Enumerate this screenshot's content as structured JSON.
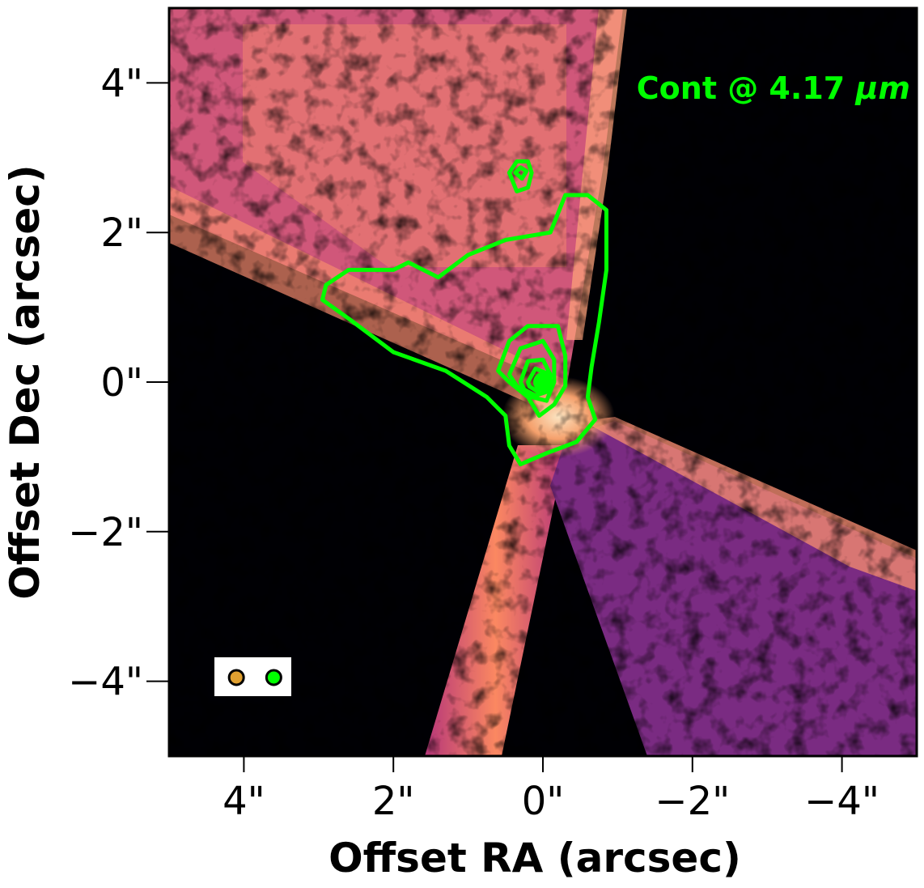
{
  "chart_data": {
    "type": "heatmap",
    "title": "",
    "xlabel": "Offset RA (arcsec)",
    "ylabel": "Offset Dec (arcsec)",
    "xlim": [
      5,
      -5
    ],
    "ylim": [
      -5,
      5
    ],
    "x_ticks": [
      4,
      2,
      0,
      -2,
      -4
    ],
    "x_tick_labels": [
      "4\"",
      "2\"",
      "0\"",
      "−2\"",
      "−4\""
    ],
    "y_ticks": [
      4,
      2,
      0,
      -2,
      -4
    ],
    "y_tick_labels": [
      "4\"",
      "2\"",
      "0\"",
      "−2\"",
      "−4\""
    ],
    "colormap": "magma",
    "annotation": {
      "text_prefix": "Cont @ 4.17 ",
      "text_unit": "μm",
      "color": "#00ff00"
    },
    "contours": {
      "color": "#00ff00",
      "levels": [
        {
          "name": "outer",
          "points": [
            [
              2.9,
              1.3
            ],
            [
              2.6,
              1.5
            ],
            [
              2.0,
              1.5
            ],
            [
              1.8,
              1.6
            ],
            [
              1.4,
              1.4
            ],
            [
              1.0,
              1.7
            ],
            [
              0.5,
              1.9
            ],
            [
              -0.1,
              2.0
            ],
            [
              -0.3,
              2.5
            ],
            [
              -0.6,
              2.5
            ],
            [
              -0.85,
              2.3
            ],
            [
              -0.85,
              1.5
            ],
            [
              -0.75,
              0.8
            ],
            [
              -0.65,
              0.2
            ],
            [
              -0.6,
              -0.2
            ],
            [
              -0.7,
              -0.5
            ],
            [
              -0.45,
              -0.8
            ],
            [
              -0.05,
              -0.95
            ],
            [
              0.3,
              -1.1
            ],
            [
              0.45,
              -0.85
            ],
            [
              0.5,
              -0.45
            ],
            [
              0.75,
              -0.2
            ],
            [
              1.3,
              0.15
            ],
            [
              2.0,
              0.4
            ],
            [
              2.6,
              0.85
            ],
            [
              2.95,
              1.1
            ]
          ]
        },
        {
          "name": "mid1",
          "points": [
            [
              0.6,
              0.15
            ],
            [
              0.45,
              0.55
            ],
            [
              0.2,
              0.75
            ],
            [
              -0.2,
              0.75
            ],
            [
              -0.3,
              0.35
            ],
            [
              -0.3,
              -0.05
            ],
            [
              -0.15,
              -0.3
            ],
            [
              0.05,
              -0.45
            ],
            [
              0.2,
              -0.2
            ],
            [
              0.45,
              0.0
            ]
          ]
        },
        {
          "name": "mid2",
          "points": [
            [
              0.45,
              0.1
            ],
            [
              0.3,
              0.45
            ],
            [
              0.0,
              0.55
            ],
            [
              -0.15,
              0.3
            ],
            [
              -0.15,
              0.0
            ],
            [
              -0.05,
              -0.25
            ],
            [
              0.15,
              -0.2
            ],
            [
              0.35,
              -0.05
            ]
          ]
        },
        {
          "name": "inner1",
          "points": [
            [
              0.3,
              0.0
            ],
            [
              0.2,
              0.28
            ],
            [
              0.0,
              0.3
            ],
            [
              -0.1,
              0.1
            ],
            [
              -0.08,
              -0.12
            ],
            [
              0.1,
              -0.18
            ],
            [
              0.25,
              -0.1
            ]
          ]
        },
        {
          "name": "inner2",
          "points": [
            [
              0.2,
              0.0
            ],
            [
              0.1,
              0.18
            ],
            [
              -0.05,
              0.12
            ],
            [
              -0.05,
              -0.06
            ],
            [
              0.08,
              -0.12
            ],
            [
              0.18,
              -0.06
            ]
          ]
        },
        {
          "name": "knot-outer",
          "points": [
            [
              0.45,
              2.8
            ],
            [
              0.35,
              2.95
            ],
            [
              0.2,
              2.95
            ],
            [
              0.15,
              2.8
            ],
            [
              0.2,
              2.6
            ],
            [
              0.35,
              2.55
            ]
          ]
        },
        {
          "name": "knot-inner",
          "points": [
            [
              0.37,
              2.8
            ],
            [
              0.3,
              2.87
            ],
            [
              0.22,
              2.82
            ],
            [
              0.28,
              2.72
            ]
          ]
        }
      ],
      "fill_center": [
        0.0,
        0.0
      ]
    },
    "beams": [
      {
        "color": "#e0a030",
        "x": 4.1,
        "y": -3.95
      },
      {
        "color": "#00ff00",
        "x": 3.6,
        "y": -3.95
      }
    ]
  }
}
